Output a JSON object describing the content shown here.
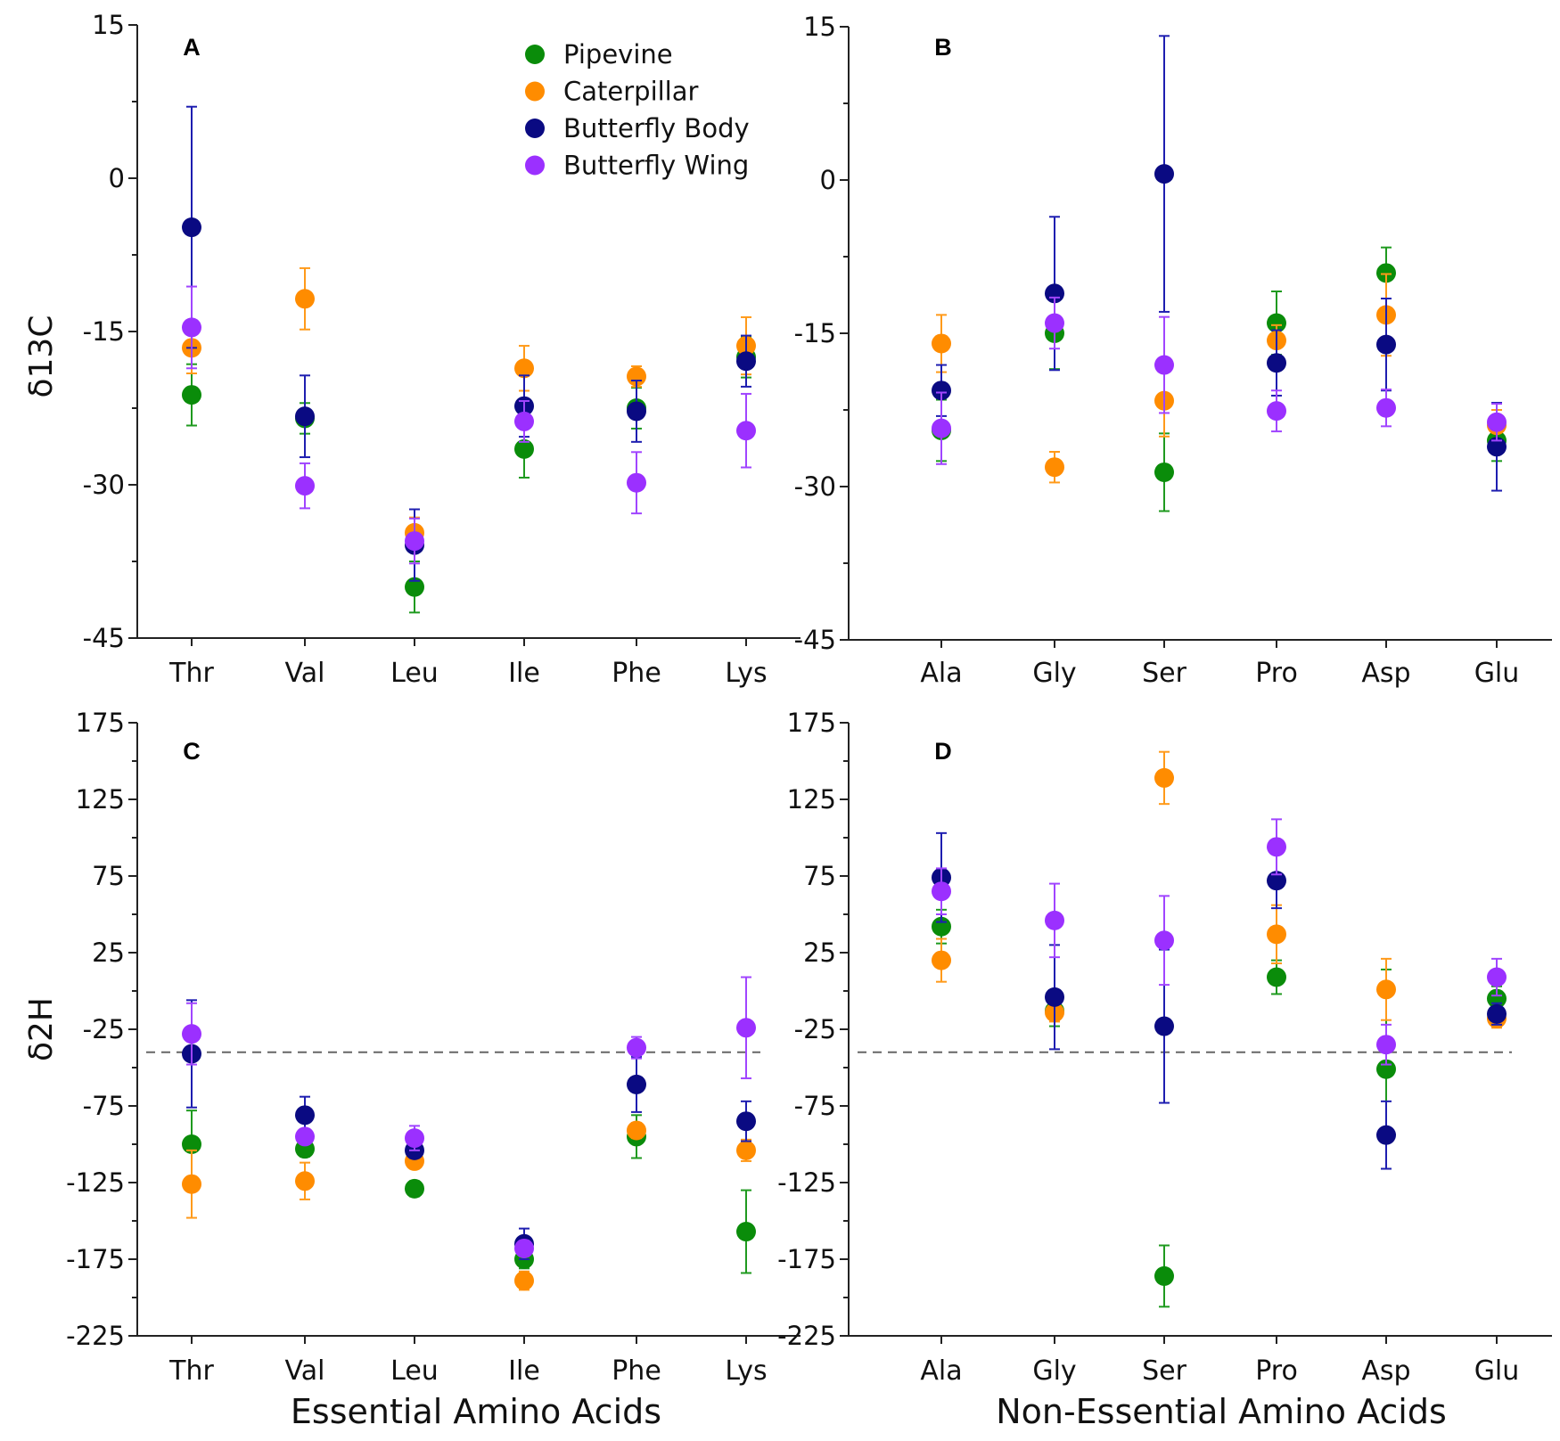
{
  "legend": [
    {
      "name": "Pipevine",
      "color": "#0a8c0a"
    },
    {
      "name": "Caterpillar",
      "color": "#ff8c00"
    },
    {
      "name": "Butterfly Body",
      "color": "#0a0a82"
    },
    {
      "name": "Butterfly Wing",
      "color": "#9b30ff"
    }
  ],
  "chart_data": [
    {
      "panel": "A",
      "type": "scatter",
      "ylabel": "δ13C",
      "xlabel": "",
      "ylim": [
        -45,
        15
      ],
      "yticks": [
        15,
        0,
        -15,
        -30,
        -45
      ],
      "categories": [
        "Thr",
        "Val",
        "Leu",
        "Ile",
        "Phe",
        "Lys"
      ],
      "series": [
        {
          "name": "Pipevine",
          "values": [
            -21.2,
            -23.5,
            -40,
            -26.5,
            -22.5,
            -17.5
          ],
          "errors": [
            3,
            1.5,
            2.5,
            2.8,
            2,
            2
          ]
        },
        {
          "name": "Caterpillar",
          "values": [
            -16.6,
            -11.8,
            -34.7,
            -18.6,
            -19.4,
            -16.4
          ],
          "errors": [
            2.5,
            3,
            1.5,
            2.2,
            1,
            2.8
          ]
        },
        {
          "name": "Butterfly Body",
          "values": [
            -4.8,
            -23.3,
            -35.9,
            -22.3,
            -22.8,
            -17.9
          ],
          "errors": [
            11.8,
            4,
            3.5,
            3,
            3,
            2.5
          ]
        },
        {
          "name": "Butterfly Wing",
          "values": [
            -14.6,
            -30.1,
            -35.5,
            -23.8,
            -29.8,
            -24.7
          ],
          "errors": [
            4,
            2.2,
            2.2,
            2,
            3,
            3.6
          ]
        }
      ]
    },
    {
      "panel": "B",
      "type": "scatter",
      "ylabel": "",
      "xlabel": "",
      "ylim": [
        -45,
        15
      ],
      "yticks": [
        15,
        0,
        -15,
        -30,
        -45
      ],
      "categories": [
        "Ala",
        "Gly",
        "Ser",
        "Pro",
        "Asp",
        "Glu"
      ],
      "series": [
        {
          "name": "Pipevine",
          "values": [
            -24.5,
            -15,
            -28.6,
            -14,
            -9.1,
            -25.5
          ],
          "errors": [
            3,
            3.5,
            3.8,
            3.1,
            2.5,
            2
          ]
        },
        {
          "name": "Caterpillar",
          "values": [
            -16,
            -28.1,
            -21.6,
            -15.7,
            -13.2,
            -24
          ],
          "errors": [
            2.8,
            1.5,
            3.5,
            1.5,
            4,
            1.5
          ]
        },
        {
          "name": "Butterfly Body",
          "values": [
            -20.6,
            -11.1,
            0.6,
            -17.9,
            -16.1,
            -26.1
          ],
          "errors": [
            2.5,
            7.5,
            13.5,
            3.2,
            4.5,
            4.3
          ]
        },
        {
          "name": "Butterfly Wing",
          "values": [
            -24.3,
            -14,
            -18.1,
            -22.6,
            -22.3,
            -23.7
          ],
          "errors": [
            3.5,
            2.5,
            4.7,
            2,
            1.8,
            1.8
          ]
        }
      ]
    },
    {
      "panel": "C",
      "type": "scatter",
      "ylabel": "δ2H",
      "xlabel": "Essential Amino Acids",
      "ylim": [
        -225,
        175
      ],
      "yticks": [
        175,
        125,
        75,
        25,
        -25,
        -75,
        -125,
        -175,
        -225
      ],
      "reference_line": -40,
      "categories": [
        "Thr",
        "Val",
        "Leu",
        "Ile",
        "Phe",
        "Lys"
      ],
      "series": [
        {
          "name": "Pipevine",
          "values": [
            -100,
            -103,
            -129,
            -175,
            -95,
            -157
          ],
          "errors": [
            22,
            5,
            5,
            6,
            14,
            27
          ]
        },
        {
          "name": "Caterpillar",
          "values": [
            -126,
            -124,
            -111,
            -189,
            -91,
            -104
          ],
          "errors": [
            22,
            12,
            5,
            6,
            5,
            7
          ]
        },
        {
          "name": "Butterfly Body",
          "values": [
            -41,
            -81,
            -104,
            -165,
            -61,
            -85
          ],
          "errors": [
            35,
            12,
            5,
            10,
            18,
            13
          ]
        },
        {
          "name": "Butterfly Wing",
          "values": [
            -28,
            -95,
            -96,
            -168,
            -37,
            -24
          ],
          "errors": [
            20,
            5,
            8,
            5,
            7,
            33
          ]
        }
      ]
    },
    {
      "panel": "D",
      "type": "scatter",
      "ylabel": "",
      "xlabel": "Non-Essential Amino Acids",
      "ylim": [
        -225,
        175
      ],
      "yticks": [
        175,
        125,
        75,
        25,
        -25,
        -75,
        -125,
        -175,
        -225
      ],
      "reference_line": -40,
      "categories": [
        "Ala",
        "Gly",
        "Ser",
        "Pro",
        "Asp",
        "Glu"
      ],
      "series": [
        {
          "name": "Pipevine",
          "values": [
            42,
            -13,
            -186,
            9,
            -51,
            -5
          ],
          "errors": [
            11,
            10,
            20,
            11,
            65,
            8
          ]
        },
        {
          "name": "Caterpillar",
          "values": [
            20,
            -14,
            139,
            37,
            1,
            -18
          ],
          "errors": [
            14,
            6,
            17,
            19,
            20,
            6
          ]
        },
        {
          "name": "Butterfly Body",
          "values": [
            74,
            -4,
            -23,
            72,
            -94,
            -15
          ],
          "errors": [
            29,
            34,
            50,
            18,
            22,
            7
          ]
        },
        {
          "name": "Butterfly Wing",
          "values": [
            65,
            46,
            33,
            94,
            -35,
            9
          ],
          "errors": [
            15,
            24,
            29,
            18,
            13,
            12
          ]
        }
      ]
    }
  ]
}
